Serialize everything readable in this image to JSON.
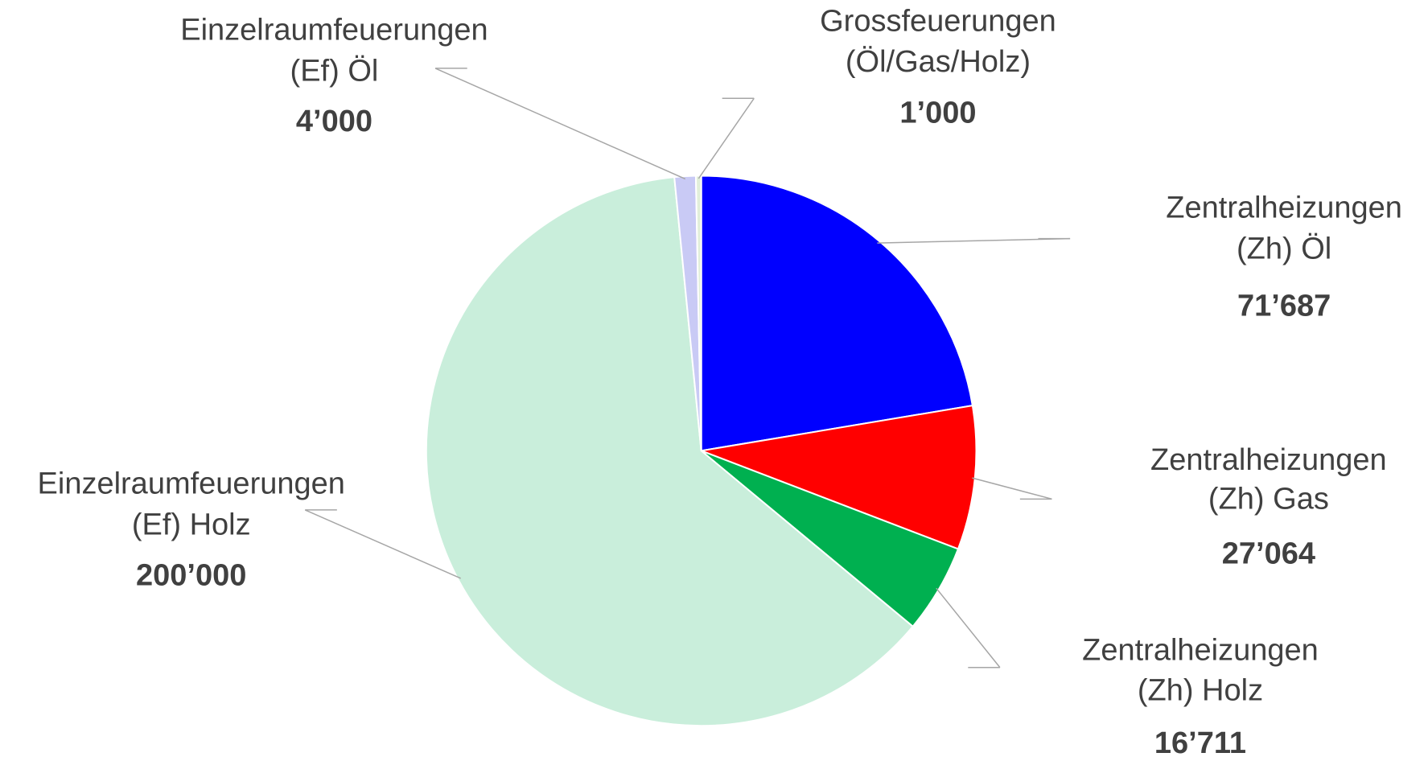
{
  "chart_data": {
    "type": "pie",
    "categories": [
      "Zentralheizungen (Zh) Öl",
      "Zentralheizungen (Zh) Gas",
      "Zentralheizungen (Zh) Holz",
      "Einzelraumfeuerungen (Ef) Holz",
      "Einzelraumfeuerungen (Ef) Öl",
      "Grossfeuerungen (Öl/Gas/Holz)"
    ],
    "values": [
      71687,
      27064,
      16711,
      200000,
      4000,
      1000
    ],
    "value_labels": [
      "71’687",
      "27’064",
      "16’711",
      "200’000",
      "4’000",
      "1’000"
    ],
    "colors": [
      "#0000ff",
      "#ff0000",
      "#00b050",
      "#c9eedb",
      "#c9caf5",
      "#e2efda"
    ]
  }
}
